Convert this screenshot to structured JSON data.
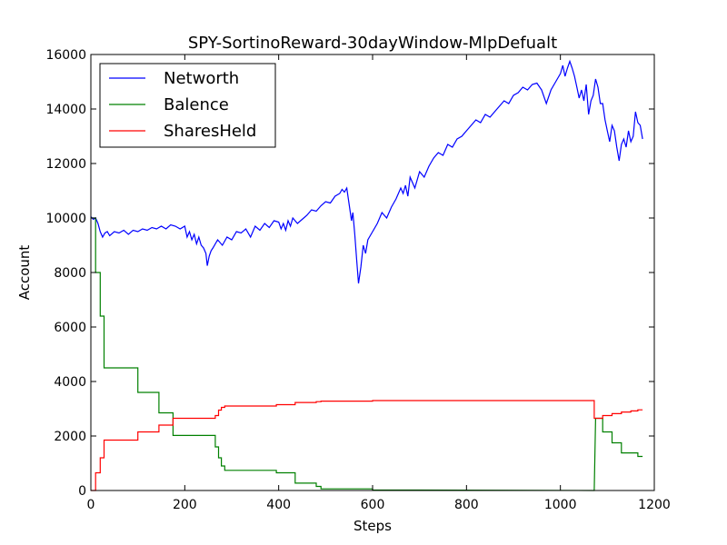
{
  "chart_data": {
    "type": "line",
    "title": "SPY-SortinoReward-30dayWindow-MlpDefualt",
    "xlabel": "Steps",
    "ylabel": "Account",
    "xlim": [
      0,
      1200
    ],
    "ylim": [
      0,
      16000
    ],
    "xticks": [
      0,
      200,
      400,
      600,
      800,
      1000,
      1200
    ],
    "yticks": [
      0,
      2000,
      4000,
      6000,
      8000,
      10000,
      12000,
      14000,
      16000
    ],
    "xtick_labels": [
      "0",
      "200",
      "400",
      "600",
      "800",
      "1000",
      "1200"
    ],
    "ytick_labels": [
      "0",
      "2000",
      "4000",
      "6000",
      "8000",
      "10000",
      "12000",
      "14000",
      "16000"
    ],
    "grid": false,
    "legend_position": "top-left",
    "series": [
      {
        "name": "Networth",
        "color": "#0000ff",
        "x": [
          0,
          5,
          10,
          15,
          20,
          25,
          30,
          35,
          40,
          50,
          60,
          70,
          80,
          90,
          100,
          110,
          120,
          130,
          140,
          150,
          160,
          170,
          180,
          190,
          200,
          205,
          210,
          215,
          220,
          225,
          230,
          235,
          240,
          245,
          248,
          252,
          256,
          260,
          270,
          280,
          290,
          300,
          310,
          320,
          330,
          340,
          350,
          360,
          370,
          380,
          390,
          400,
          405,
          410,
          415,
          420,
          425,
          430,
          440,
          450,
          460,
          470,
          480,
          490,
          500,
          510,
          520,
          530,
          535,
          540,
          545,
          550,
          555,
          558,
          562,
          566,
          570,
          575,
          580,
          585,
          590,
          600,
          610,
          620,
          630,
          640,
          650,
          660,
          665,
          670,
          675,
          680,
          690,
          700,
          710,
          720,
          730,
          740,
          750,
          760,
          770,
          780,
          790,
          800,
          810,
          820,
          830,
          840,
          850,
          860,
          870,
          880,
          890,
          900,
          910,
          920,
          930,
          940,
          950,
          960,
          970,
          980,
          990,
          1000,
          1005,
          1010,
          1015,
          1020,
          1025,
          1030,
          1035,
          1040,
          1045,
          1050,
          1055,
          1060,
          1065,
          1070,
          1075,
          1080,
          1085,
          1090,
          1095,
          1100,
          1105,
          1110,
          1115,
          1120,
          1125,
          1130,
          1135,
          1140,
          1145,
          1150,
          1155,
          1160,
          1165,
          1170,
          1175
        ],
        "y": [
          10050,
          9950,
          10000,
          9800,
          9500,
          9300,
          9450,
          9500,
          9350,
          9500,
          9450,
          9550,
          9400,
          9550,
          9500,
          9600,
          9550,
          9650,
          9600,
          9700,
          9600,
          9750,
          9700,
          9600,
          9700,
          9300,
          9500,
          9200,
          9400,
          9050,
          9300,
          9000,
          8900,
          8700,
          8250,
          8600,
          8800,
          8900,
          9200,
          9000,
          9300,
          9200,
          9500,
          9450,
          9600,
          9300,
          9700,
          9550,
          9800,
          9650,
          9900,
          9850,
          9600,
          9800,
          9550,
          9900,
          9700,
          10000,
          9800,
          9950,
          10100,
          10300,
          10250,
          10450,
          10600,
          10550,
          10800,
          10900,
          11050,
          10950,
          11100,
          10500,
          9900,
          10200,
          9400,
          8500,
          7600,
          8200,
          9000,
          8700,
          9200,
          9500,
          9800,
          10200,
          10000,
          10400,
          10700,
          11100,
          10900,
          11200,
          10800,
          11500,
          11100,
          11700,
          11500,
          11900,
          12200,
          12400,
          12300,
          12700,
          12600,
          12900,
          13000,
          13200,
          13400,
          13600,
          13500,
          13800,
          13700,
          13900,
          14100,
          14300,
          14200,
          14500,
          14600,
          14800,
          14700,
          14900,
          14950,
          14700,
          14200,
          14700,
          15000,
          15300,
          15600,
          15200,
          15500,
          15750,
          15500,
          15200,
          14800,
          14400,
          14700,
          14300,
          14900,
          13800,
          14300,
          14500,
          15100,
          14800,
          14200,
          14200,
          13600,
          13200,
          12800,
          13400,
          13200,
          12600,
          12100,
          12700,
          12900,
          12600,
          13200,
          12800,
          13000,
          13900,
          13500,
          13400,
          12900
        ]
      },
      {
        "name": "Balence",
        "color": "#008000",
        "x": [
          0,
          10,
          10,
          20,
          20,
          28,
          28,
          100,
          100,
          145,
          145,
          175,
          175,
          265,
          265,
          272,
          272,
          278,
          278,
          285,
          285,
          395,
          395,
          435,
          435,
          480,
          480,
          490,
          490,
          600,
          600,
          1072,
          1075,
          1090,
          1090,
          1110,
          1110,
          1130,
          1130,
          1165,
          1165,
          1175
        ],
        "y": [
          10000,
          10000,
          8000,
          8000,
          6400,
          6400,
          4500,
          4500,
          3600,
          3600,
          2850,
          2850,
          2020,
          2020,
          1600,
          1600,
          1200,
          1200,
          900,
          900,
          740,
          740,
          650,
          650,
          270,
          270,
          150,
          150,
          60,
          60,
          20,
          0,
          2650,
          2650,
          2150,
          2150,
          1750,
          1750,
          1380,
          1380,
          1250,
          1250
        ]
      },
      {
        "name": "SharesHeld",
        "color": "#ff0000",
        "x": [
          0,
          10,
          10,
          20,
          20,
          28,
          28,
          100,
          100,
          145,
          145,
          175,
          175,
          265,
          265,
          272,
          272,
          278,
          278,
          285,
          285,
          395,
          395,
          435,
          435,
          480,
          480,
          490,
          490,
          600,
          600,
          1072,
          1072,
          1090,
          1090,
          1110,
          1110,
          1130,
          1130,
          1150,
          1150,
          1165,
          1165,
          1175
        ],
        "y": [
          0,
          0,
          650,
          650,
          1200,
          1200,
          1850,
          1850,
          2150,
          2150,
          2400,
          2400,
          2650,
          2650,
          2750,
          2750,
          2950,
          2950,
          3050,
          3050,
          3100,
          3100,
          3150,
          3150,
          3230,
          3230,
          3260,
          3260,
          3280,
          3280,
          3300,
          3300,
          2650,
          2650,
          2750,
          2750,
          2820,
          2820,
          2880,
          2880,
          2920,
          2920,
          2960,
          2960
        ]
      }
    ]
  }
}
